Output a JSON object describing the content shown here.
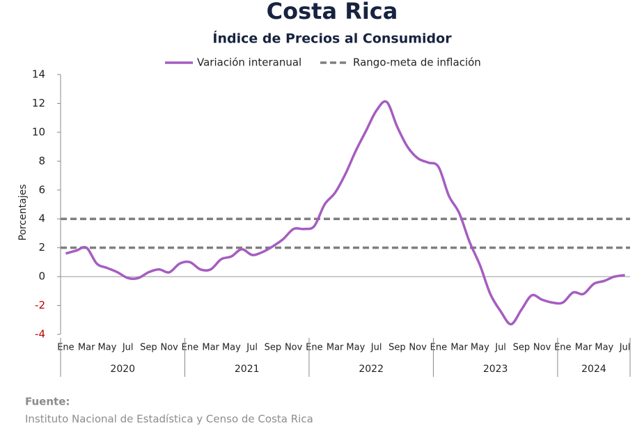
{
  "chart_data": {
    "type": "line",
    "title": "Costa Rica",
    "subtitle": "Índice de Precios al Consumidor",
    "y_label": "Porcentajes",
    "categories": [
      "Ene",
      null,
      "Mar",
      null,
      "May",
      null,
      "Jul",
      null,
      "Sep",
      null,
      "Nov",
      null,
      "Ene",
      null,
      "Mar",
      null,
      "May",
      null,
      "Jul",
      null,
      "Sep",
      null,
      "Nov",
      null,
      "Ene",
      null,
      "Mar",
      null,
      "May",
      null,
      "Jul",
      null,
      "Sep",
      null,
      "Nov",
      null,
      "Ene",
      null,
      "Mar",
      null,
      "May",
      null,
      "Jul",
      null,
      "Sep",
      null,
      "Nov",
      null,
      "Ene",
      null,
      "Mar",
      null,
      "May",
      null,
      "Jul"
    ],
    "years": [
      "2020",
      "2021",
      "2022",
      "2023",
      "2024"
    ],
    "series": [
      {
        "name": "Variación interanual",
        "color": "#a55dc0",
        "values": [
          1.6,
          1.8,
          2.0,
          0.9,
          0.6,
          0.3,
          -0.1,
          -0.1,
          0.3,
          0.5,
          0.3,
          0.9,
          1.0,
          0.5,
          0.5,
          1.2,
          1.4,
          1.9,
          1.5,
          1.7,
          2.1,
          2.6,
          3.3,
          3.3,
          3.5,
          5.0,
          5.8,
          7.1,
          8.7,
          10.1,
          11.5,
          12.1,
          10.4,
          9.0,
          8.2,
          7.9,
          7.6,
          5.6,
          4.4,
          2.4,
          0.8,
          -1.2,
          -2.4,
          -3.3,
          -2.3,
          -1.3,
          -1.6,
          -1.8,
          -1.8,
          -1.1,
          -1.2,
          -0.5,
          -0.3,
          0.0,
          0.1
        ]
      }
    ],
    "target_lines": {
      "name": "Rango-meta de inflación",
      "color": "#7f7f7f",
      "values": [
        2,
        4
      ]
    },
    "ylim": [
      -4,
      14
    ],
    "yticks": [
      -4,
      -2,
      0,
      2,
      4,
      6,
      8,
      10,
      12,
      14
    ],
    "negative_tick_color": "#c00000",
    "source_label": "Fuente:",
    "source": "Instituto Nacional de Estadística y Censo de Costa Rica"
  }
}
